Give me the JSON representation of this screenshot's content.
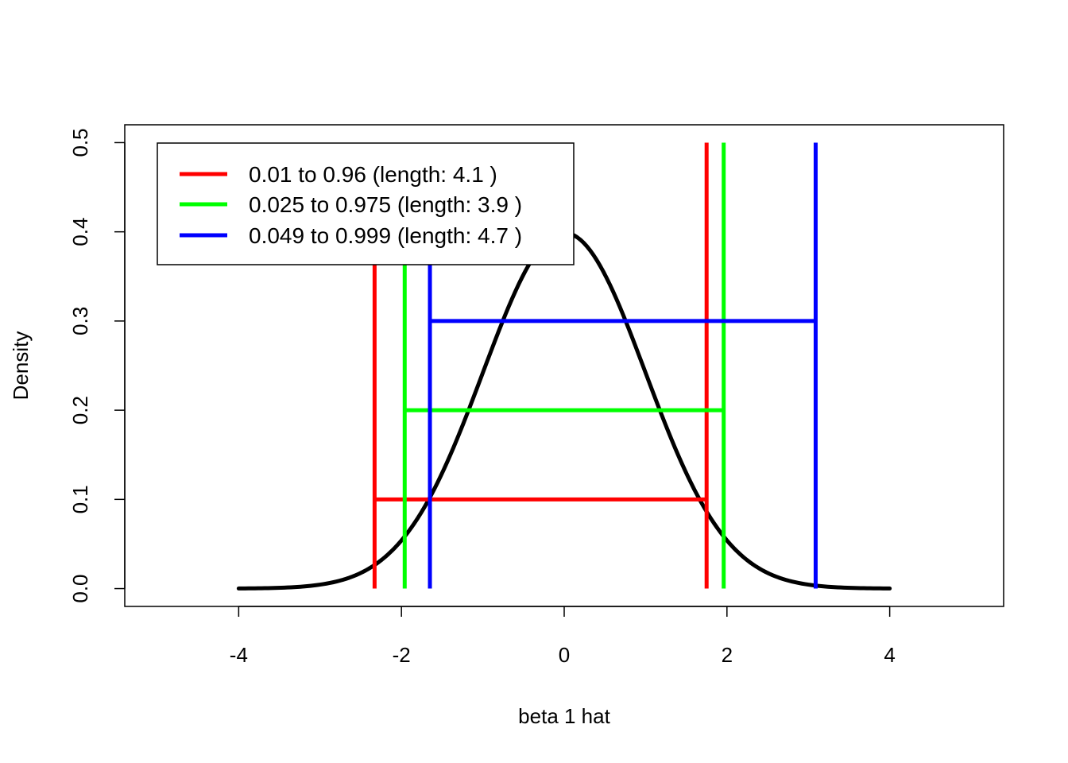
{
  "chart_data": {
    "type": "line",
    "title": "",
    "xlabel": "beta 1 hat",
    "ylabel": "Density",
    "xlim": [
      -5.4,
      5.4
    ],
    "ylim": [
      -0.02,
      0.52
    ],
    "xticks": [
      "-4",
      "-2",
      "0",
      "2",
      "4"
    ],
    "yticks": [
      "0.0",
      "0.1",
      "0.2",
      "0.3",
      "0.4",
      "0.5"
    ],
    "grid": false,
    "legend_position": "top-left",
    "density": {
      "x_range": [
        -4,
        4
      ],
      "mean": 0,
      "sd": 1,
      "color": "#000000"
    },
    "intervals": [
      {
        "label": "0.01 to 0.96 (length: 4.1 )",
        "lower": -2.33,
        "upper": 1.75,
        "level": 0.1,
        "color": "#ff0000"
      },
      {
        "label": "0.025 to 0.975 (length: 3.9 )",
        "lower": -1.96,
        "upper": 1.96,
        "level": 0.2,
        "color": "#00ff00"
      },
      {
        "label": "0.049 to 0.999 (length: 4.7 )",
        "lower": -1.65,
        "upper": 3.09,
        "level": 0.3,
        "color": "#0000ff"
      }
    ],
    "vline_top": 0.5
  }
}
